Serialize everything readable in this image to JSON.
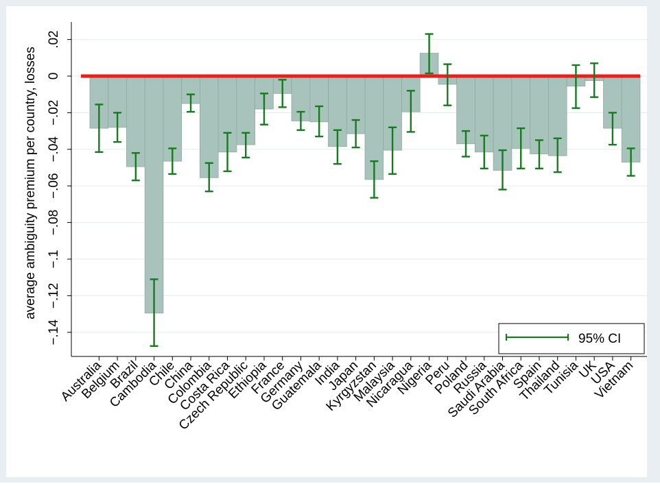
{
  "chart_data": {
    "type": "bar",
    "ylabel": "average ambiguity premium per country, losses",
    "xlabel": "",
    "ylim": [
      -0.155,
      0.027
    ],
    "yticks": [
      0.02,
      0,
      -0.02,
      -0.04,
      -0.06,
      -0.08,
      -0.1,
      -0.12,
      -0.14
    ],
    "ytick_labels": [
      ".02",
      "0",
      "−.02",
      "−.04",
      "−.06",
      "−.08",
      "−.1",
      "−.12",
      "−.14"
    ],
    "reference_line": 0,
    "grid": true,
    "legend": {
      "position": "bottom-right",
      "entries": [
        "95% CI"
      ]
    },
    "categories": [
      "Australia",
      "Belgium",
      "Brazil",
      "Cambodia",
      "Chile",
      "China",
      "Colombia",
      "Costa Rica",
      "Czech Republic",
      "Ethiopia",
      "France",
      "Germany",
      "Guatemala",
      "India",
      "Japan",
      "Kyrgyzstan",
      "Malaysia",
      "Nicaragua",
      "Nigeria",
      "Peru",
      "Poland",
      "Russia",
      "Saudi Arabia",
      "South Africa",
      "Spain",
      "Thailand",
      "Tunisia",
      "UK",
      "USA",
      "Vietnam"
    ],
    "values": [
      -0.0285,
      -0.028,
      -0.0495,
      -0.1295,
      -0.0465,
      -0.015,
      -0.0555,
      -0.0415,
      -0.0375,
      -0.018,
      -0.0095,
      -0.0245,
      -0.025,
      -0.0385,
      -0.0315,
      -0.0565,
      -0.0405,
      -0.0195,
      0.0125,
      -0.0045,
      -0.037,
      -0.0415,
      -0.0515,
      -0.0395,
      -0.0425,
      -0.0435,
      -0.0055,
      -0.0025,
      -0.0285,
      -0.047
    ],
    "ci_lower": [
      -0.0415,
      -0.036,
      -0.057,
      -0.1475,
      -0.0535,
      -0.0195,
      -0.063,
      -0.052,
      -0.0445,
      -0.0265,
      -0.017,
      -0.0295,
      -0.033,
      -0.048,
      -0.039,
      -0.0665,
      -0.0535,
      -0.0305,
      0.0015,
      -0.016,
      -0.044,
      -0.0505,
      -0.062,
      -0.0505,
      -0.0505,
      -0.0525,
      -0.0175,
      -0.0115,
      -0.0375,
      -0.0545
    ],
    "ci_upper": [
      -0.0155,
      -0.02,
      -0.042,
      -0.111,
      -0.0395,
      -0.01,
      -0.0475,
      -0.031,
      -0.031,
      -0.0095,
      -0.002,
      -0.0195,
      -0.0165,
      -0.0295,
      -0.024,
      -0.0465,
      -0.028,
      -0.008,
      0.023,
      0.0065,
      -0.03,
      -0.0325,
      -0.0405,
      -0.0285,
      -0.035,
      -0.034,
      0.006,
      0.007,
      -0.02,
      -0.0395
    ],
    "colors": {
      "background": "#e9eef2",
      "plot_bg": "#ffffff",
      "bar_fill": "#a8c3bc",
      "bar_stroke": "#8ea8a1",
      "ci": "#157b1e",
      "zero_line": "#ee1c1c",
      "grid": "#e9eef2"
    }
  }
}
